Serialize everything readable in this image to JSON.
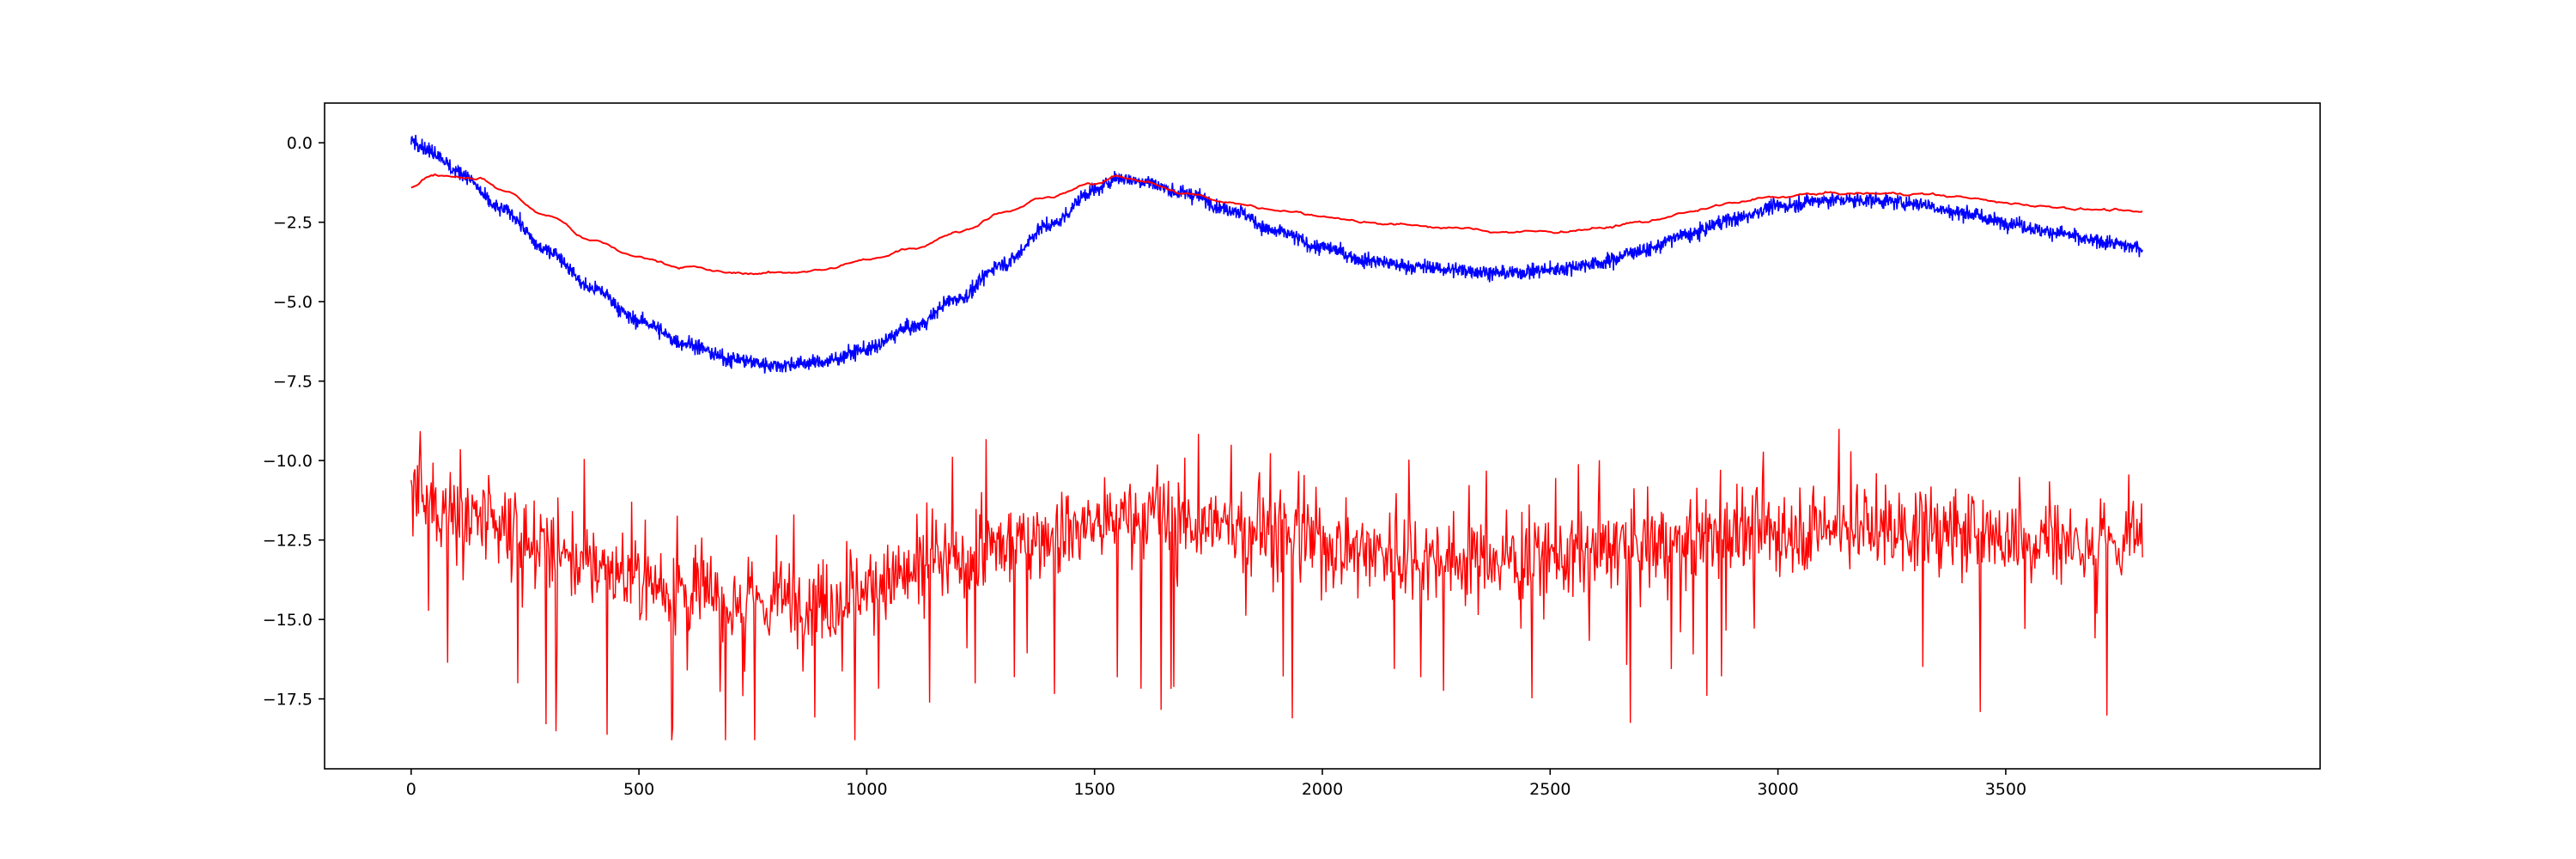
{
  "chart_data": {
    "type": "line",
    "title": "",
    "xlabel": "",
    "ylabel": "",
    "xlim": [
      -190,
      4190
    ],
    "ylim": [
      -19.7,
      1.25
    ],
    "grid": false,
    "legend": "none",
    "x_ticks": [
      0,
      500,
      1000,
      1500,
      2000,
      2500,
      3000,
      3500
    ],
    "x_tick_labels": [
      "0",
      "500",
      "1000",
      "1500",
      "2000",
      "2500",
      "3000",
      "3500"
    ],
    "y_ticks": [
      0.0,
      -2.5,
      -5.0,
      -7.5,
      -10.0,
      -12.5,
      -15.0,
      -17.5
    ],
    "y_tick_labels": [
      "0.0",
      "−2.5",
      "−5.0",
      "−7.5",
      "−10.0",
      "−12.5",
      "−15.0",
      "−17.5"
    ],
    "x_range": [
      0,
      3800
    ],
    "series": [
      {
        "color": "#ff0000",
        "style": "smooth",
        "approx_points": [
          [
            0,
            -1.4
          ],
          [
            50,
            -1.0
          ],
          [
            150,
            -1.1
          ],
          [
            200,
            -1.5
          ],
          [
            300,
            -2.3
          ],
          [
            400,
            -3.1
          ],
          [
            500,
            -3.6
          ],
          [
            600,
            -3.9
          ],
          [
            700,
            -4.1
          ],
          [
            800,
            -4.1
          ],
          [
            900,
            -4.0
          ],
          [
            1000,
            -3.7
          ],
          [
            1100,
            -3.3
          ],
          [
            1200,
            -2.8
          ],
          [
            1300,
            -2.2
          ],
          [
            1400,
            -1.7
          ],
          [
            1500,
            -1.3
          ],
          [
            1550,
            -1.0
          ],
          [
            1600,
            -1.2
          ],
          [
            1700,
            -1.6
          ],
          [
            1800,
            -1.9
          ],
          [
            1900,
            -2.1
          ],
          [
            2000,
            -2.3
          ],
          [
            2100,
            -2.5
          ],
          [
            2200,
            -2.6
          ],
          [
            2300,
            -2.7
          ],
          [
            2400,
            -2.8
          ],
          [
            2500,
            -2.8
          ],
          [
            2600,
            -2.7
          ],
          [
            2700,
            -2.5
          ],
          [
            2800,
            -2.2
          ],
          [
            2900,
            -1.9
          ],
          [
            3000,
            -1.7
          ],
          [
            3100,
            -1.6
          ],
          [
            3200,
            -1.6
          ],
          [
            3300,
            -1.6
          ],
          [
            3400,
            -1.7
          ],
          [
            3500,
            -1.9
          ],
          [
            3600,
            -2.0
          ],
          [
            3700,
            -2.1
          ],
          [
            3800,
            -2.2
          ]
        ]
      },
      {
        "color": "#0000ff",
        "style": "noisy",
        "approx_points": [
          [
            0,
            0.1
          ],
          [
            50,
            -0.3
          ],
          [
            100,
            -0.9
          ],
          [
            200,
            -2.1
          ],
          [
            300,
            -3.4
          ],
          [
            400,
            -4.6
          ],
          [
            500,
            -5.6
          ],
          [
            600,
            -6.3
          ],
          [
            700,
            -6.8
          ],
          [
            800,
            -7.0
          ],
          [
            900,
            -6.9
          ],
          [
            1000,
            -6.5
          ],
          [
            1100,
            -5.8
          ],
          [
            1200,
            -4.9
          ],
          [
            1300,
            -3.8
          ],
          [
            1400,
            -2.6
          ],
          [
            1500,
            -1.5
          ],
          [
            1550,
            -1.1
          ],
          [
            1600,
            -1.2
          ],
          [
            1700,
            -1.6
          ],
          [
            1800,
            -2.1
          ],
          [
            1900,
            -2.8
          ],
          [
            2000,
            -3.3
          ],
          [
            2100,
            -3.7
          ],
          [
            2200,
            -3.9
          ],
          [
            2300,
            -4.0
          ],
          [
            2400,
            -4.1
          ],
          [
            2500,
            -4.0
          ],
          [
            2600,
            -3.8
          ],
          [
            2700,
            -3.4
          ],
          [
            2800,
            -2.9
          ],
          [
            2900,
            -2.4
          ],
          [
            3000,
            -2.0
          ],
          [
            3100,
            -1.8
          ],
          [
            3200,
            -1.8
          ],
          [
            3300,
            -1.9
          ],
          [
            3400,
            -2.2
          ],
          [
            3500,
            -2.5
          ],
          [
            3600,
            -2.8
          ],
          [
            3700,
            -3.1
          ],
          [
            3800,
            -3.3
          ]
        ],
        "noise_amplitude": 0.3
      },
      {
        "color": "#ff0000",
        "style": "noisy-spiky",
        "approx_points": [
          [
            0,
            -11.2
          ],
          [
            100,
            -11.6
          ],
          [
            200,
            -12.3
          ],
          [
            300,
            -12.8
          ],
          [
            400,
            -13.3
          ],
          [
            500,
            -13.7
          ],
          [
            600,
            -14.1
          ],
          [
            700,
            -14.4
          ],
          [
            800,
            -14.5
          ],
          [
            900,
            -14.4
          ],
          [
            1000,
            -14.0
          ],
          [
            1100,
            -13.6
          ],
          [
            1200,
            -13.2
          ],
          [
            1300,
            -12.7
          ],
          [
            1400,
            -12.3
          ],
          [
            1500,
            -12.0
          ],
          [
            1600,
            -11.8
          ],
          [
            1700,
            -11.9
          ],
          [
            1800,
            -12.1
          ],
          [
            1900,
            -12.3
          ],
          [
            2000,
            -12.6
          ],
          [
            2100,
            -12.8
          ],
          [
            2200,
            -13.0
          ],
          [
            2300,
            -13.1
          ],
          [
            2400,
            -13.1
          ],
          [
            2500,
            -13.0
          ],
          [
            2600,
            -12.9
          ],
          [
            2700,
            -12.7
          ],
          [
            2800,
            -12.5
          ],
          [
            2900,
            -12.3
          ],
          [
            3000,
            -12.2
          ],
          [
            3100,
            -12.1
          ],
          [
            3200,
            -12.1
          ],
          [
            3300,
            -12.2
          ],
          [
            3400,
            -12.3
          ],
          [
            3500,
            -12.4
          ],
          [
            3600,
            -12.5
          ],
          [
            3700,
            -12.6
          ],
          [
            3800,
            -12.6
          ]
        ],
        "noise_amplitude": 1.3,
        "downward_spike_min": -18.8,
        "upward_spike_max": -9.0
      }
    ]
  }
}
